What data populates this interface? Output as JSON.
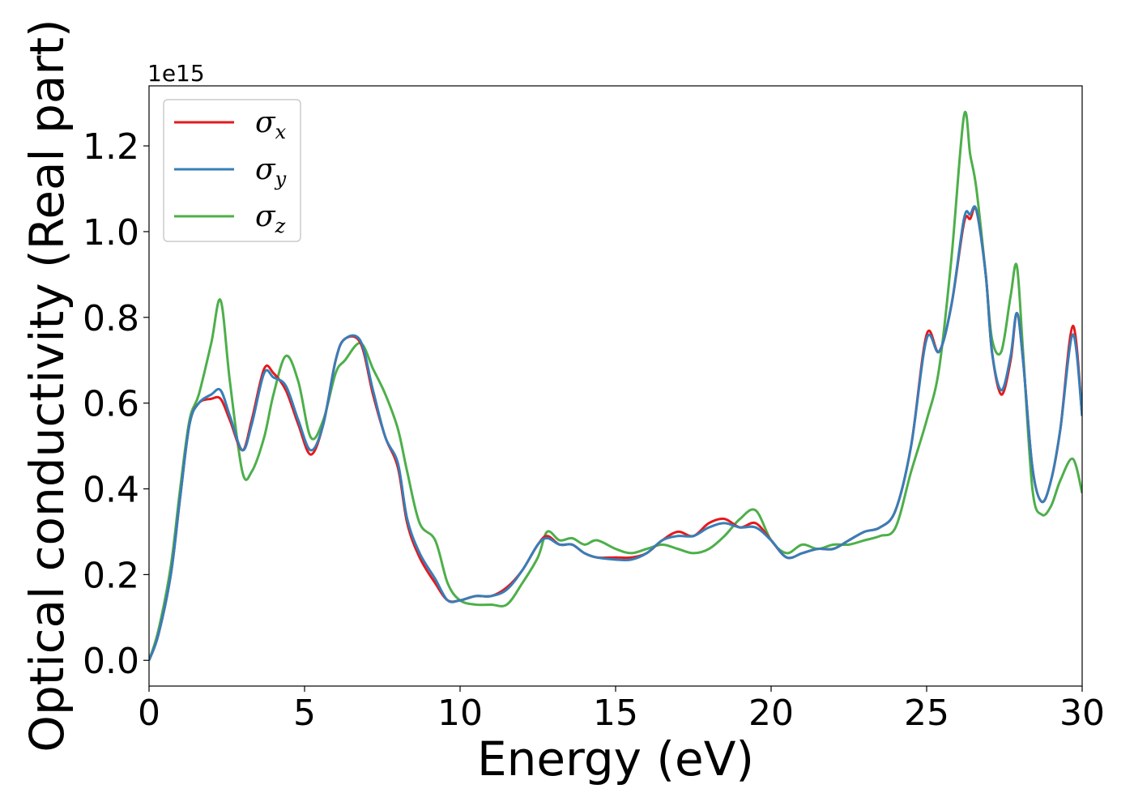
{
  "chart_data": {
    "type": "line",
    "xlabel": "Energy (eV)",
    "ylabel": "Optical conductivity (Real part)",
    "y_offset_label": "1e15",
    "xlim": [
      0,
      30
    ],
    "ylim": [
      -0.06,
      1.34
    ],
    "x_ticks": [
      0,
      5,
      10,
      15,
      20,
      25,
      30
    ],
    "x_tick_labels": [
      "0",
      "5",
      "10",
      "15",
      "20",
      "25",
      "30"
    ],
    "y_ticks": [
      0.0,
      0.2,
      0.4,
      0.6,
      0.8,
      1.0,
      1.2
    ],
    "y_tick_labels": [
      "0.0",
      "0.2",
      "0.4",
      "0.6",
      "0.8",
      "1.0",
      "1.2"
    ],
    "grid": false,
    "legend_position": "upper-left",
    "series": [
      {
        "name": "σ",
        "subscript": "x",
        "color": "#e41a1c",
        "x": [
          0,
          0.3,
          0.7,
          1.0,
          1.3,
          1.6,
          2.0,
          2.3,
          2.6,
          3.0,
          3.3,
          3.7,
          4.0,
          4.4,
          4.8,
          5.2,
          5.6,
          6.0,
          6.3,
          6.8,
          7.2,
          7.6,
          8.0,
          8.3,
          8.7,
          9.2,
          9.6,
          10.0,
          10.5,
          11.0,
          11.5,
          12.0,
          12.5,
          12.8,
          13.2,
          13.6,
          14.0,
          14.4,
          15.0,
          15.5,
          16.0,
          16.5,
          17.0,
          17.5,
          18.0,
          18.5,
          19.0,
          19.5,
          20.0,
          20.5,
          21.0,
          21.5,
          22.0,
          22.5,
          23.0,
          23.5,
          24.0,
          24.5,
          25.0,
          25.4,
          25.8,
          26.2,
          26.4,
          26.6,
          26.9,
          27.1,
          27.4,
          27.7,
          27.9,
          28.1,
          28.4,
          28.7,
          29.0,
          29.3,
          29.7,
          30.0
        ],
        "values": [
          0.0,
          0.06,
          0.2,
          0.38,
          0.55,
          0.6,
          0.61,
          0.61,
          0.56,
          0.49,
          0.56,
          0.68,
          0.67,
          0.63,
          0.55,
          0.48,
          0.55,
          0.7,
          0.75,
          0.74,
          0.62,
          0.52,
          0.45,
          0.32,
          0.24,
          0.18,
          0.14,
          0.14,
          0.15,
          0.15,
          0.17,
          0.21,
          0.27,
          0.29,
          0.27,
          0.27,
          0.25,
          0.24,
          0.24,
          0.24,
          0.25,
          0.28,
          0.3,
          0.29,
          0.32,
          0.33,
          0.31,
          0.32,
          0.28,
          0.24,
          0.25,
          0.26,
          0.26,
          0.28,
          0.3,
          0.31,
          0.35,
          0.5,
          0.76,
          0.72,
          0.83,
          1.02,
          1.03,
          1.05,
          0.9,
          0.72,
          0.62,
          0.7,
          0.81,
          0.7,
          0.45,
          0.37,
          0.42,
          0.54,
          0.78,
          0.57
        ]
      },
      {
        "name": "σ",
        "subscript": "y",
        "color": "#377eb8",
        "x": [
          0,
          0.3,
          0.7,
          1.0,
          1.3,
          1.6,
          2.0,
          2.3,
          2.6,
          3.0,
          3.3,
          3.7,
          4.0,
          4.4,
          4.8,
          5.2,
          5.6,
          6.0,
          6.3,
          6.8,
          7.2,
          7.6,
          8.0,
          8.3,
          8.7,
          9.2,
          9.6,
          10.0,
          10.5,
          11.0,
          11.5,
          12.0,
          12.5,
          12.8,
          13.2,
          13.6,
          14.0,
          14.4,
          15.0,
          15.5,
          16.0,
          16.5,
          17.0,
          17.5,
          18.0,
          18.5,
          19.0,
          19.5,
          20.0,
          20.5,
          21.0,
          21.5,
          22.0,
          22.5,
          23.0,
          23.5,
          24.0,
          24.5,
          25.0,
          25.4,
          25.8,
          26.2,
          26.4,
          26.6,
          26.9,
          27.1,
          27.4,
          27.7,
          27.9,
          28.1,
          28.4,
          28.7,
          29.0,
          29.3,
          29.7,
          30.0
        ],
        "values": [
          0.0,
          0.06,
          0.2,
          0.38,
          0.55,
          0.6,
          0.62,
          0.63,
          0.57,
          0.49,
          0.55,
          0.67,
          0.66,
          0.64,
          0.56,
          0.49,
          0.55,
          0.7,
          0.75,
          0.745,
          0.63,
          0.52,
          0.46,
          0.33,
          0.25,
          0.19,
          0.14,
          0.14,
          0.15,
          0.15,
          0.165,
          0.21,
          0.27,
          0.285,
          0.27,
          0.27,
          0.25,
          0.24,
          0.235,
          0.235,
          0.25,
          0.28,
          0.29,
          0.29,
          0.31,
          0.32,
          0.31,
          0.31,
          0.28,
          0.24,
          0.25,
          0.26,
          0.26,
          0.28,
          0.3,
          0.31,
          0.35,
          0.5,
          0.75,
          0.72,
          0.83,
          1.03,
          1.04,
          1.05,
          0.9,
          0.72,
          0.63,
          0.71,
          0.81,
          0.7,
          0.45,
          0.37,
          0.42,
          0.54,
          0.76,
          0.57
        ]
      },
      {
        "name": "σ",
        "subscript": "z",
        "color": "#4daf4a",
        "x": [
          0,
          0.3,
          0.7,
          1.0,
          1.3,
          1.6,
          2.0,
          2.3,
          2.6,
          3.0,
          3.3,
          3.7,
          4.0,
          4.4,
          4.8,
          5.2,
          5.6,
          6.0,
          6.3,
          6.8,
          7.2,
          7.6,
          8.0,
          8.3,
          8.7,
          9.2,
          9.6,
          10.0,
          10.5,
          11.0,
          11.5,
          12.0,
          12.5,
          12.8,
          13.2,
          13.6,
          14.0,
          14.4,
          15.0,
          15.5,
          16.0,
          16.5,
          17.0,
          17.5,
          18.0,
          18.5,
          19.0,
          19.5,
          20.0,
          20.5,
          21.0,
          21.5,
          22.0,
          22.5,
          23.0,
          23.5,
          24.0,
          24.5,
          25.0,
          25.4,
          25.8,
          26.2,
          26.4,
          26.6,
          26.9,
          27.1,
          27.4,
          27.7,
          27.9,
          28.1,
          28.4,
          28.7,
          29.0,
          29.3,
          29.7,
          30.0
        ],
        "values": [
          0.0,
          0.07,
          0.22,
          0.4,
          0.56,
          0.62,
          0.74,
          0.84,
          0.65,
          0.44,
          0.44,
          0.52,
          0.62,
          0.71,
          0.65,
          0.52,
          0.56,
          0.67,
          0.7,
          0.74,
          0.68,
          0.62,
          0.54,
          0.44,
          0.32,
          0.28,
          0.18,
          0.14,
          0.13,
          0.13,
          0.13,
          0.18,
          0.24,
          0.3,
          0.28,
          0.285,
          0.27,
          0.28,
          0.26,
          0.25,
          0.26,
          0.27,
          0.26,
          0.25,
          0.26,
          0.29,
          0.33,
          0.35,
          0.28,
          0.25,
          0.27,
          0.26,
          0.27,
          0.27,
          0.28,
          0.29,
          0.31,
          0.44,
          0.56,
          0.68,
          0.94,
          1.27,
          1.18,
          1.1,
          0.9,
          0.75,
          0.72,
          0.85,
          0.92,
          0.72,
          0.4,
          0.34,
          0.36,
          0.42,
          0.47,
          0.39
        ]
      }
    ]
  }
}
